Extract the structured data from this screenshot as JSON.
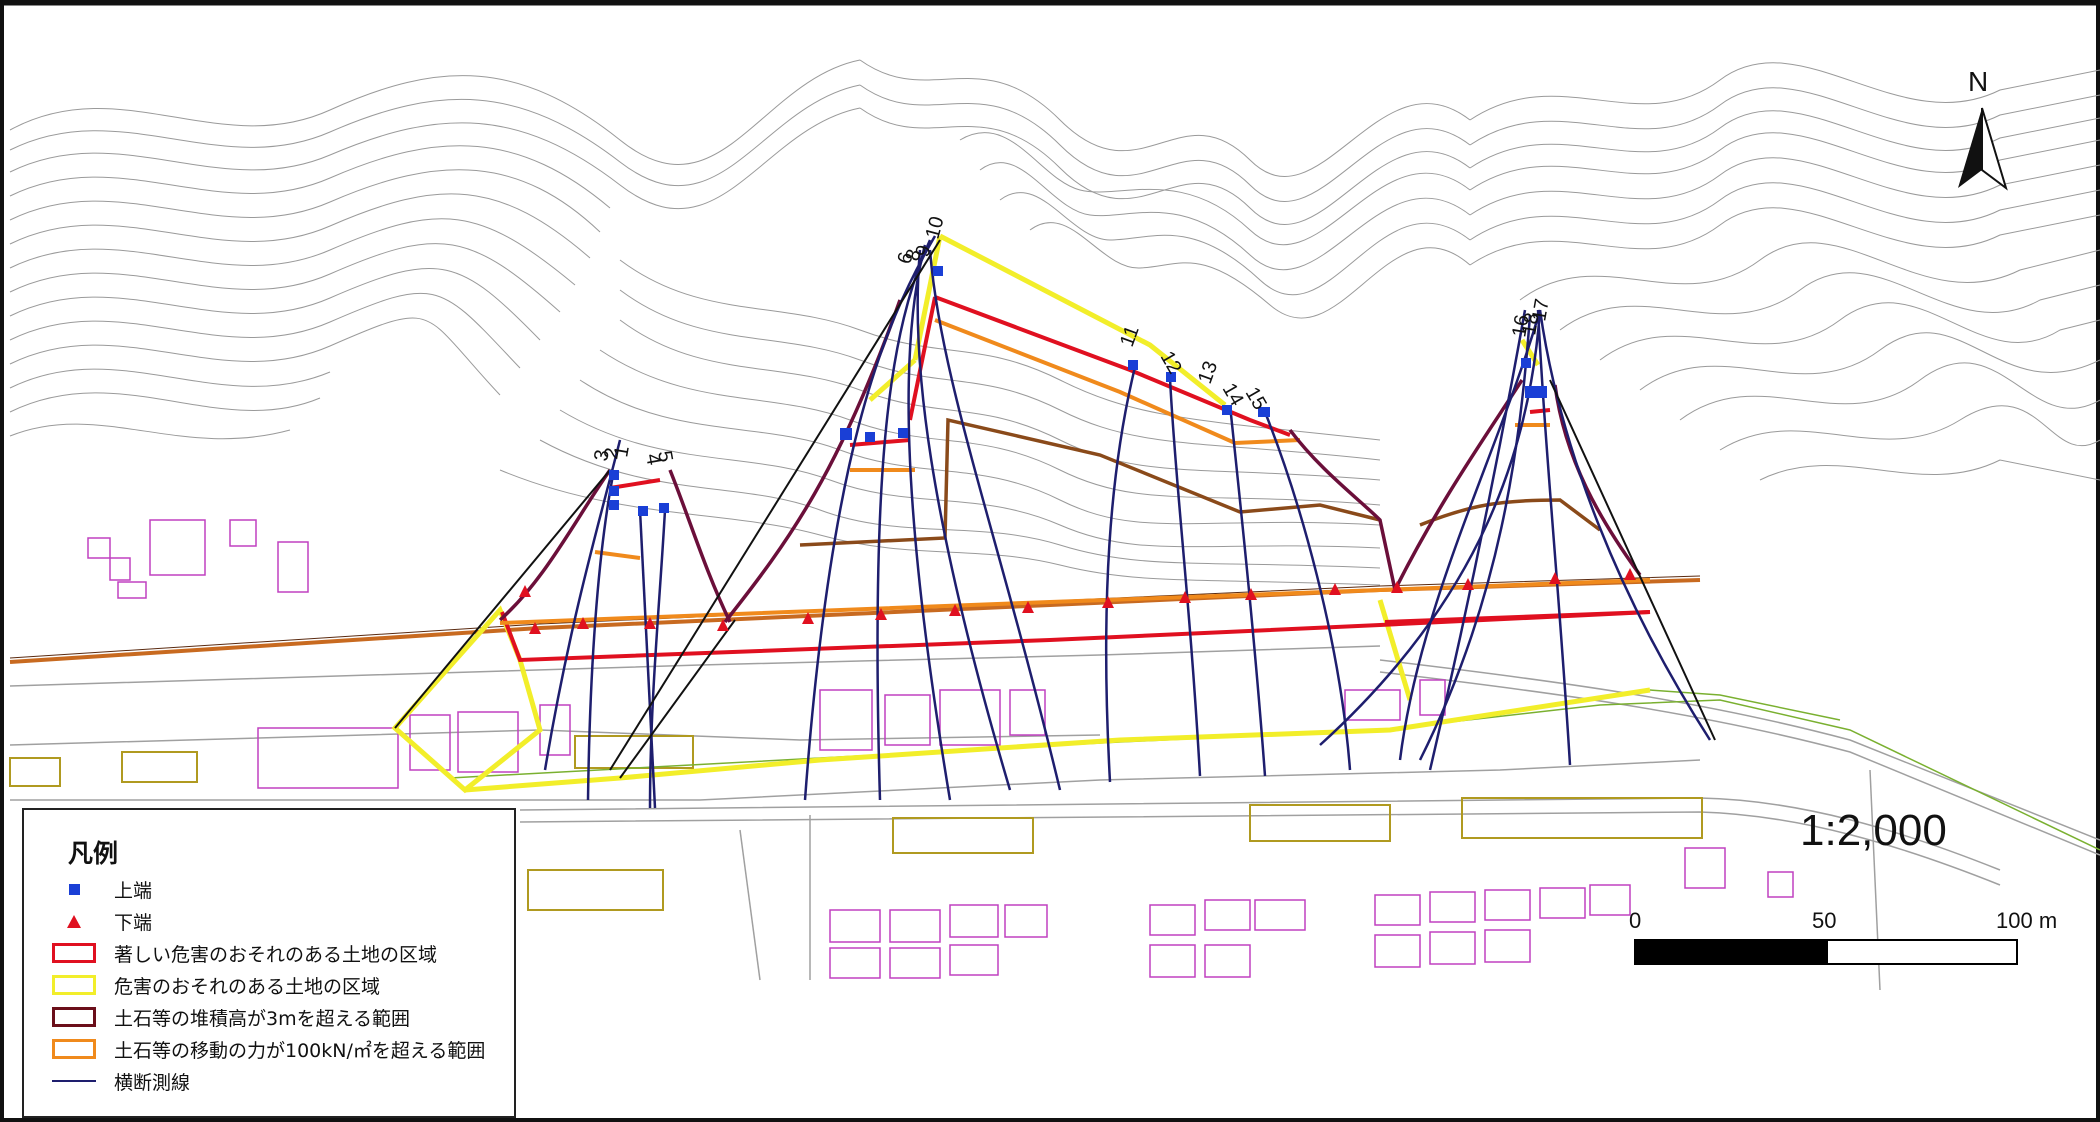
{
  "map": {
    "scale_ratio": "1:2,000",
    "north_label": "N",
    "scalebar": {
      "tick_0": "0",
      "tick_50": "50",
      "tick_100": "100 m"
    }
  },
  "legend": {
    "title": "凡例",
    "items": [
      {
        "label": "上端",
        "symbol": "blue-square"
      },
      {
        "label": "下端",
        "symbol": "red-triangle"
      },
      {
        "label": "著しい危害のおそれのある土地の区域",
        "symbol": "red-box",
        "color": "#e01020"
      },
      {
        "label": "危害のおそれのある土地の区域",
        "symbol": "yellow-box",
        "color": "#f2ee2a"
      },
      {
        "label": "土石等の堆積高が3mを超える範囲",
        "symbol": "darkred-box",
        "color": "#6b0f1a"
      },
      {
        "label": "土石等の移動の力が100kN/㎡を超える範囲",
        "symbol": "orange-box",
        "color": "#f08a1c"
      },
      {
        "label": "横断測線",
        "symbol": "navy-line",
        "color": "#1e1e6e"
      }
    ]
  },
  "profile_labels": [
    "3",
    "2",
    "1",
    "4",
    "5",
    "6",
    "8",
    "9",
    "10",
    "11",
    "12",
    "13",
    "14",
    "15",
    "16",
    "18",
    "17"
  ],
  "colors": {
    "contour": "#9a9a9a",
    "building": "#c040c0",
    "parking": "#b09a20",
    "road_edge": "#a0a0a0",
    "railway": "#c86a20"
  }
}
